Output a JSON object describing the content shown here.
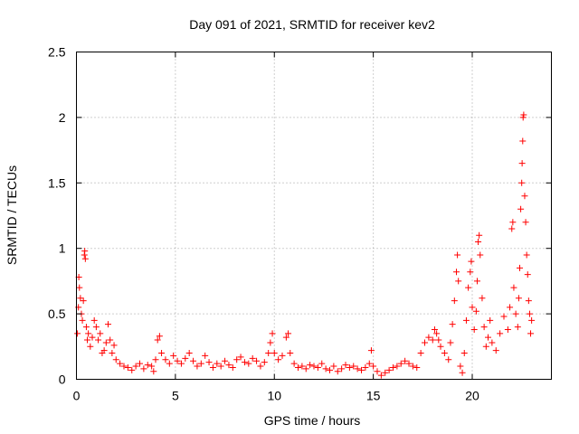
{
  "chart_data": {
    "type": "scatter",
    "title": "Day 091 of 2021, SRMTID for receiver kev2",
    "xlabel": "GPS time / hours",
    "ylabel": "SRMTID / TECUs",
    "xlim": [
      0,
      24
    ],
    "ylim": [
      0,
      2.5
    ],
    "x_ticks": [
      0,
      5,
      10,
      15,
      20
    ],
    "x_tick_labels": [
      "0",
      "5",
      "10",
      "15",
      "20"
    ],
    "y_ticks": [
      0,
      0.5,
      1,
      1.5,
      2,
      2.5
    ],
    "y_tick_labels": [
      "0",
      "0.5",
      "1",
      "1.5",
      "2",
      "2.5"
    ],
    "grid": true,
    "marker": "+",
    "marker_color": "#ff0000",
    "series": [
      {
        "name": "kev2",
        "points": [
          [
            0.05,
            0.35
          ],
          [
            0.1,
            0.55
          ],
          [
            0.12,
            0.78
          ],
          [
            0.15,
            0.7
          ],
          [
            0.2,
            0.62
          ],
          [
            0.25,
            0.5
          ],
          [
            0.3,
            0.45
          ],
          [
            0.35,
            0.6
          ],
          [
            0.4,
            0.95
          ],
          [
            0.42,
            0.98
          ],
          [
            0.45,
            0.92
          ],
          [
            0.5,
            0.4
          ],
          [
            0.55,
            0.3
          ],
          [
            0.6,
            0.35
          ],
          [
            0.7,
            0.25
          ],
          [
            0.8,
            0.32
          ],
          [
            0.9,
            0.45
          ],
          [
            1.0,
            0.4
          ],
          [
            1.1,
            0.3
          ],
          [
            1.2,
            0.35
          ],
          [
            1.3,
            0.2
          ],
          [
            1.4,
            0.22
          ],
          [
            1.5,
            0.28
          ],
          [
            1.6,
            0.42
          ],
          [
            1.7,
            0.3
          ],
          [
            1.8,
            0.2
          ],
          [
            1.9,
            0.26
          ],
          [
            2.0,
            0.15
          ],
          [
            2.2,
            0.12
          ],
          [
            2.4,
            0.1
          ],
          [
            2.6,
            0.09
          ],
          [
            2.8,
            0.07
          ],
          [
            3.0,
            0.1
          ],
          [
            3.2,
            0.12
          ],
          [
            3.4,
            0.08
          ],
          [
            3.6,
            0.11
          ],
          [
            3.8,
            0.1
          ],
          [
            3.9,
            0.06
          ],
          [
            4.0,
            0.15
          ],
          [
            4.1,
            0.3
          ],
          [
            4.2,
            0.33
          ],
          [
            4.3,
            0.2
          ],
          [
            4.5,
            0.15
          ],
          [
            4.7,
            0.12
          ],
          [
            4.9,
            0.18
          ],
          [
            5.1,
            0.14
          ],
          [
            5.3,
            0.12
          ],
          [
            5.5,
            0.16
          ],
          [
            5.7,
            0.2
          ],
          [
            5.9,
            0.14
          ],
          [
            6.1,
            0.1
          ],
          [
            6.3,
            0.12
          ],
          [
            6.5,
            0.18
          ],
          [
            6.7,
            0.13
          ],
          [
            6.9,
            0.09
          ],
          [
            7.1,
            0.12
          ],
          [
            7.3,
            0.1
          ],
          [
            7.5,
            0.14
          ],
          [
            7.7,
            0.11
          ],
          [
            7.9,
            0.09
          ],
          [
            8.1,
            0.15
          ],
          [
            8.3,
            0.17
          ],
          [
            8.5,
            0.13
          ],
          [
            8.7,
            0.12
          ],
          [
            8.9,
            0.16
          ],
          [
            9.1,
            0.14
          ],
          [
            9.3,
            0.1
          ],
          [
            9.5,
            0.13
          ],
          [
            9.7,
            0.2
          ],
          [
            9.8,
            0.28
          ],
          [
            9.9,
            0.35
          ],
          [
            10.0,
            0.2
          ],
          [
            10.2,
            0.15
          ],
          [
            10.4,
            0.18
          ],
          [
            10.6,
            0.32
          ],
          [
            10.7,
            0.35
          ],
          [
            10.8,
            0.2
          ],
          [
            11.0,
            0.12
          ],
          [
            11.2,
            0.09
          ],
          [
            11.4,
            0.1
          ],
          [
            11.6,
            0.08
          ],
          [
            11.8,
            0.11
          ],
          [
            12.0,
            0.1
          ],
          [
            12.2,
            0.09
          ],
          [
            12.4,
            0.12
          ],
          [
            12.6,
            0.08
          ],
          [
            12.8,
            0.07
          ],
          [
            13.0,
            0.1
          ],
          [
            13.2,
            0.06
          ],
          [
            13.4,
            0.08
          ],
          [
            13.6,
            0.11
          ],
          [
            13.8,
            0.09
          ],
          [
            14.0,
            0.1
          ],
          [
            14.2,
            0.08
          ],
          [
            14.4,
            0.07
          ],
          [
            14.6,
            0.09
          ],
          [
            14.8,
            0.12
          ],
          [
            14.9,
            0.22
          ],
          [
            15.0,
            0.1
          ],
          [
            15.2,
            0.06
          ],
          [
            15.4,
            0.03
          ],
          [
            15.6,
            0.05
          ],
          [
            15.8,
            0.07
          ],
          [
            16.0,
            0.09
          ],
          [
            16.2,
            0.1
          ],
          [
            16.4,
            0.12
          ],
          [
            16.6,
            0.14
          ],
          [
            16.8,
            0.12
          ],
          [
            17.0,
            0.1
          ],
          [
            17.2,
            0.09
          ],
          [
            17.4,
            0.2
          ],
          [
            17.6,
            0.28
          ],
          [
            17.8,
            0.32
          ],
          [
            18.0,
            0.3
          ],
          [
            18.1,
            0.38
          ],
          [
            18.2,
            0.35
          ],
          [
            18.3,
            0.3
          ],
          [
            18.4,
            0.25
          ],
          [
            18.6,
            0.2
          ],
          [
            18.8,
            0.15
          ],
          [
            18.9,
            0.28
          ],
          [
            19.0,
            0.42
          ],
          [
            19.1,
            0.6
          ],
          [
            19.2,
            0.82
          ],
          [
            19.25,
            0.95
          ],
          [
            19.3,
            0.75
          ],
          [
            19.4,
            0.1
          ],
          [
            19.5,
            0.05
          ],
          [
            19.6,
            0.2
          ],
          [
            19.7,
            0.45
          ],
          [
            19.8,
            0.7
          ],
          [
            19.9,
            0.82
          ],
          [
            19.95,
            0.9
          ],
          [
            20.0,
            0.55
          ],
          [
            20.1,
            0.38
          ],
          [
            20.2,
            0.52
          ],
          [
            20.25,
            0.75
          ],
          [
            20.3,
            1.05
          ],
          [
            20.35,
            1.1
          ],
          [
            20.4,
            0.95
          ],
          [
            20.5,
            0.62
          ],
          [
            20.6,
            0.4
          ],
          [
            20.7,
            0.25
          ],
          [
            20.8,
            0.32
          ],
          [
            20.9,
            0.45
          ],
          [
            21.0,
            0.28
          ],
          [
            21.2,
            0.22
          ],
          [
            21.4,
            0.35
          ],
          [
            21.6,
            0.48
          ],
          [
            21.8,
            0.38
          ],
          [
            21.9,
            0.55
          ],
          [
            22.0,
            1.15
          ],
          [
            22.05,
            1.2
          ],
          [
            22.1,
            0.7
          ],
          [
            22.2,
            0.5
          ],
          [
            22.3,
            0.4
          ],
          [
            22.35,
            0.62
          ],
          [
            22.4,
            0.85
          ],
          [
            22.45,
            1.3
          ],
          [
            22.5,
            1.5
          ],
          [
            22.52,
            1.65
          ],
          [
            22.55,
            1.82
          ],
          [
            22.57,
            2.0
          ],
          [
            22.6,
            2.02
          ],
          [
            22.65,
            1.4
          ],
          [
            22.7,
            1.2
          ],
          [
            22.75,
            0.95
          ],
          [
            22.8,
            0.8
          ],
          [
            22.85,
            0.6
          ],
          [
            22.9,
            0.5
          ],
          [
            22.95,
            0.35
          ],
          [
            23.0,
            0.45
          ]
        ]
      }
    ]
  }
}
